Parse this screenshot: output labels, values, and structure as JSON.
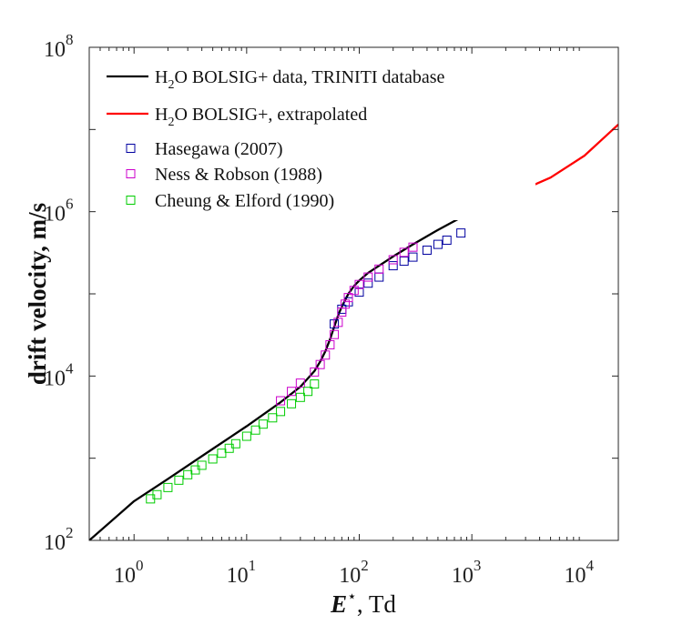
{
  "chart_data": {
    "type": "line",
    "x_scale": "log",
    "y_scale": "log",
    "xlim": [
      0.4,
      20000
    ],
    "ylim": [
      100,
      100000000
    ],
    "x_ticks": [
      1,
      10,
      100,
      1000,
      10000
    ],
    "x_tick_labels": [
      {
        "base": "10",
        "exp": "0"
      },
      {
        "base": "10",
        "exp": "1"
      },
      {
        "base": "10",
        "exp": "2"
      },
      {
        "base": "10",
        "exp": "3"
      },
      {
        "base": "10",
        "exp": "4"
      }
    ],
    "y_ticks": [
      100,
      10000,
      1000000,
      100000000
    ],
    "y_tick_labels": [
      {
        "base": "10",
        "exp": "2"
      },
      {
        "base": "10",
        "exp": "4"
      },
      {
        "base": "10",
        "exp": "6"
      },
      {
        "base": "10",
        "exp": "8"
      }
    ],
    "xlabel": {
      "symbol": "E",
      "sup": "⋆",
      "text": ",  Td"
    },
    "ylabel": "drift velocity,  m/s",
    "grid": false,
    "legend_position": "top-left",
    "series": [
      {
        "name": "H2O BOLSIG+ data, TRINITI database",
        "legend": {
          "pre": "H",
          "sub": "2",
          "post": "O BOLSIG+ data, TRINITI database"
        },
        "style": "line",
        "color": "#000000",
        "points": [
          [
            0.4,
            100
          ],
          [
            1,
            300
          ],
          [
            2,
            560
          ],
          [
            5,
            1300
          ],
          [
            10,
            2450
          ],
          [
            20,
            4800
          ],
          [
            30,
            7400
          ],
          [
            40,
            11500
          ],
          [
            45,
            15000
          ],
          [
            50,
            20000
          ],
          [
            55,
            28000
          ],
          [
            60,
            40000
          ],
          [
            65,
            55000
          ],
          [
            70,
            70000
          ],
          [
            80,
            100000
          ],
          [
            90,
            125000
          ],
          [
            100,
            145000
          ],
          [
            120,
            180000
          ],
          [
            150,
            220000
          ],
          [
            200,
            285000
          ],
          [
            300,
            400000
          ],
          [
            500,
            600000
          ],
          [
            1000,
            1000000
          ]
        ]
      },
      {
        "name": "H2O BOLSIG+, extrapolated",
        "legend": {
          "pre": "H",
          "sub": "2",
          "post": "O BOLSIG+, extrapolated"
        },
        "style": "line",
        "color": "#ff0000",
        "points": [
          [
            1000,
            1000000
          ],
          [
            2000,
            1500000
          ],
          [
            5000,
            2600000
          ],
          [
            10000,
            4800000
          ],
          [
            15000,
            8000000
          ],
          [
            20000,
            11500000
          ]
        ]
      },
      {
        "name": "Hasegawa (2007)",
        "legend": {
          "pre": "Hasegawa (2007)",
          "sub": "",
          "post": ""
        },
        "style": "marker",
        "color": "#0000a0",
        "points": [
          [
            60,
            43000
          ],
          [
            70,
            65000
          ],
          [
            80,
            80000
          ],
          [
            100,
            105000
          ],
          [
            120,
            135000
          ],
          [
            150,
            160000
          ],
          [
            200,
            220000
          ],
          [
            250,
            250000
          ],
          [
            300,
            280000
          ],
          [
            400,
            340000
          ],
          [
            500,
            400000
          ],
          [
            600,
            450000
          ],
          [
            800,
            550000
          ]
        ]
      },
      {
        "name": "Ness & Robson (1988)",
        "legend": {
          "pre": "Ness & Robson (1988)",
          "sub": "",
          "post": ""
        },
        "style": "marker",
        "color": "#cc00cc",
        "points": [
          [
            20,
            5000
          ],
          [
            25,
            6500
          ],
          [
            30,
            8200
          ],
          [
            40,
            11200
          ],
          [
            45,
            13800
          ],
          [
            50,
            18000
          ],
          [
            55,
            24000
          ],
          [
            60,
            32000
          ],
          [
            65,
            45000
          ],
          [
            70,
            60000
          ],
          [
            75,
            75000
          ],
          [
            80,
            90000
          ],
          [
            90,
            110000
          ],
          [
            100,
            130000
          ],
          [
            120,
            160000
          ],
          [
            150,
            200000
          ],
          [
            200,
            260000
          ],
          [
            250,
            320000
          ],
          [
            300,
            370000
          ]
        ]
      },
      {
        "name": "Cheung & Elford (1990)",
        "legend": {
          "pre": "Cheung & Elford (1990)",
          "sub": "",
          "post": ""
        },
        "style": "marker",
        "color": "#00cc00",
        "points": [
          [
            1.4,
            320
          ],
          [
            1.6,
            360
          ],
          [
            2,
            440
          ],
          [
            2.5,
            540
          ],
          [
            3,
            630
          ],
          [
            3.5,
            720
          ],
          [
            4,
            820
          ],
          [
            5,
            980
          ],
          [
            6,
            1150
          ],
          [
            7,
            1320
          ],
          [
            8,
            1500
          ],
          [
            10,
            1850
          ],
          [
            12,
            2200
          ],
          [
            14,
            2600
          ],
          [
            17,
            3100
          ],
          [
            20,
            3700
          ],
          [
            25,
            4600
          ],
          [
            30,
            5500
          ],
          [
            35,
            6500
          ],
          [
            40,
            8000
          ]
        ]
      }
    ]
  }
}
